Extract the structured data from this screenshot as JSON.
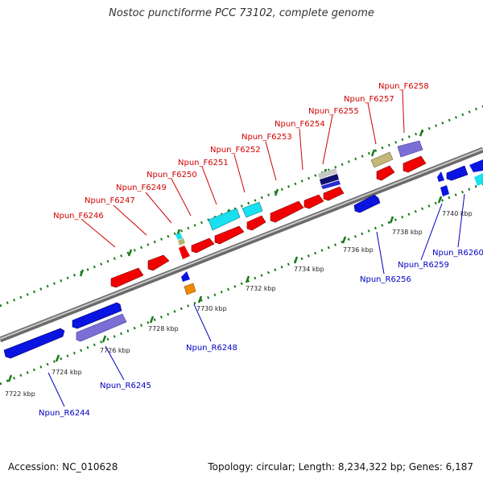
{
  "title": "Nostoc punctiforme PCC 73102, complete genome",
  "footer": {
    "accession": "Accession: NC_010628",
    "info": "Topology: circular; Length: 8,234,322 bp; Genes: 6,187"
  },
  "colors": {
    "forward_label": "#d00000",
    "reverse_label": "#0000c0",
    "backbone": "#888888",
    "dotted_track": "#1a7a1a"
  },
  "ticks": [
    "7722 kbp",
    "7724 kbp",
    "7726 kbp",
    "7728 kbp",
    "7730 kbp",
    "7732 kbp",
    "7734 kbp",
    "7736 kbp",
    "7738 kbp",
    "7740 kbp"
  ],
  "genes_forward": [
    {
      "name": "Npun_F6246"
    },
    {
      "name": "Npun_F6247"
    },
    {
      "name": "Npun_F6249"
    },
    {
      "name": "Npun_F6250"
    },
    {
      "name": "Npun_F6251"
    },
    {
      "name": "Npun_F6252"
    },
    {
      "name": "Npun_F6253"
    },
    {
      "name": "Npun_F6254"
    },
    {
      "name": "Npun_F6255"
    },
    {
      "name": "Npun_F6257"
    },
    {
      "name": "Npun_F6258"
    }
  ],
  "genes_reverse": [
    {
      "name": "Npun_R6244"
    },
    {
      "name": "Npun_R6245"
    },
    {
      "name": "Npun_R6248"
    },
    {
      "name": "Npun_R6256"
    },
    {
      "name": "Npun_R6259"
    },
    {
      "name": "Npun_R6260"
    }
  ]
}
